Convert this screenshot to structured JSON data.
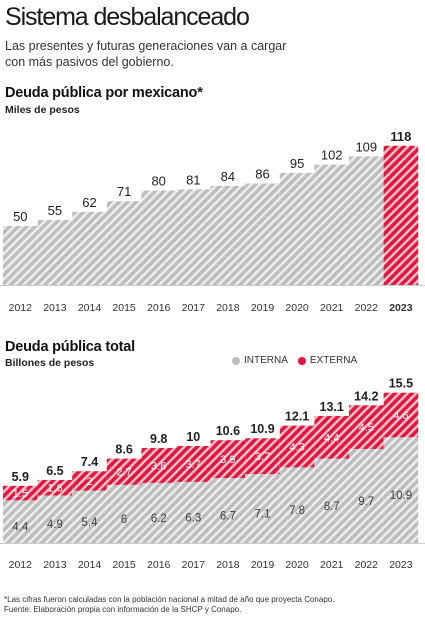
{
  "header": {
    "title": "Sistema desbalanceado",
    "subtitle_line1": "Las presentes y futuras generaciones van a cargar",
    "subtitle_line2": "con más pasivos del gobierno."
  },
  "colors": {
    "gray": "#bdbdbd",
    "red": "#e3173e",
    "bg": "#ffffff"
  },
  "legend": {
    "interna": "INTERNA",
    "externa": "EXTERNA"
  },
  "chart_data": [
    {
      "type": "bar",
      "title": "Deuda pública por mexicano*",
      "ylabel": "Miles de pesos",
      "categories": [
        "2012",
        "2013",
        "2014",
        "2015",
        "2016",
        "2017",
        "2018",
        "2019",
        "2020",
        "2021",
        "2022",
        "2023"
      ],
      "values": [
        50,
        55,
        62,
        71,
        80,
        81,
        84,
        86,
        95,
        102,
        109,
        118
      ],
      "highlight_category": "2023",
      "ylim": [
        0,
        120
      ],
      "grid": false
    },
    {
      "type": "bar",
      "stacked": true,
      "title": "Deuda pública total",
      "ylabel": "Billones de pesos",
      "categories": [
        "2012",
        "2013",
        "2014",
        "2015",
        "2016",
        "2017",
        "2018",
        "2019",
        "2020",
        "2021",
        "2022",
        "2023"
      ],
      "series": [
        {
          "name": "INTERNA",
          "values": [
            4.4,
            4.9,
            5.4,
            6.0,
            6.2,
            6.3,
            6.7,
            7.1,
            7.8,
            8.7,
            9.7,
            10.9
          ]
        },
        {
          "name": "EXTERNA",
          "values": [
            1.5,
            1.6,
            2.0,
            2.7,
            3.6,
            3.7,
            3.9,
            3.7,
            4.3,
            4.4,
            4.5,
            4.6
          ]
        }
      ],
      "totals": [
        5.9,
        6.5,
        7.4,
        8.6,
        9.8,
        10.0,
        10.6,
        10.9,
        12.1,
        13.1,
        14.2,
        15.5
      ],
      "legend_position": "top-right",
      "grid": false
    }
  ],
  "footer": {
    "note": "*Las cifras fueron calculadas con la población nacional a mitad de año que proyecta Conapo.",
    "source": "Fuente: Elaboración propia con información de la SHCP y Conapo."
  }
}
